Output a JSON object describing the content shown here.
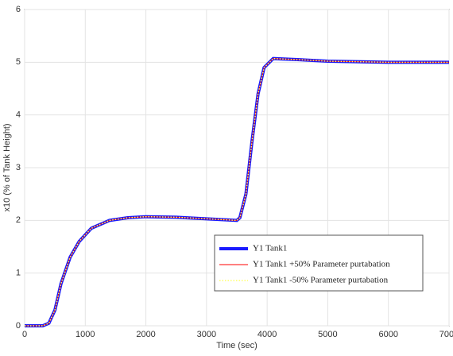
{
  "chart_data": {
    "type": "line",
    "xlabel": "Time (sec)",
    "ylabel": "x10 (% of Tank Height)",
    "x": [
      0,
      300,
      400,
      500,
      600,
      750,
      900,
      1100,
      1400,
      1700,
      2000,
      2500,
      3000,
      3500,
      3550,
      3650,
      3750,
      3850,
      3950,
      4100,
      4500,
      5000,
      6000,
      7000
    ],
    "series": [
      {
        "name": "Y1 Tank1",
        "color": "#1a1aff",
        "values": [
          0,
          0,
          0.05,
          0.3,
          0.8,
          1.3,
          1.6,
          1.85,
          2.0,
          2.05,
          2.07,
          2.06,
          2.03,
          2.0,
          2.05,
          2.5,
          3.5,
          4.4,
          4.9,
          5.07,
          5.05,
          5.02,
          5.0,
          5.0
        ]
      },
      {
        "name": "Y1 Tank1 +50% Parameter purtabation",
        "color": "#ff0000",
        "values": [
          0,
          0,
          0.05,
          0.3,
          0.8,
          1.3,
          1.6,
          1.85,
          2.0,
          2.05,
          2.07,
          2.06,
          2.03,
          2.0,
          2.05,
          2.5,
          3.5,
          4.4,
          4.9,
          5.07,
          5.05,
          5.02,
          5.0,
          5.0
        ]
      },
      {
        "name": "Y1 Tank1 -50% Parameter purtabation",
        "color": "#ffff66",
        "values": [
          0,
          0,
          0.05,
          0.3,
          0.8,
          1.3,
          1.6,
          1.85,
          2.0,
          2.05,
          2.07,
          2.06,
          2.03,
          2.0,
          2.05,
          2.5,
          3.5,
          4.4,
          4.9,
          5.07,
          5.05,
          5.02,
          5.0,
          5.0
        ]
      }
    ],
    "xlim": [
      0,
      7000
    ],
    "xticks": [
      0,
      1000,
      2000,
      3000,
      4000,
      5000,
      6000,
      7000
    ],
    "ylim": [
      0,
      6
    ],
    "yticks": [
      0,
      1,
      2,
      3,
      4,
      5,
      6
    ],
    "grid": true
  }
}
